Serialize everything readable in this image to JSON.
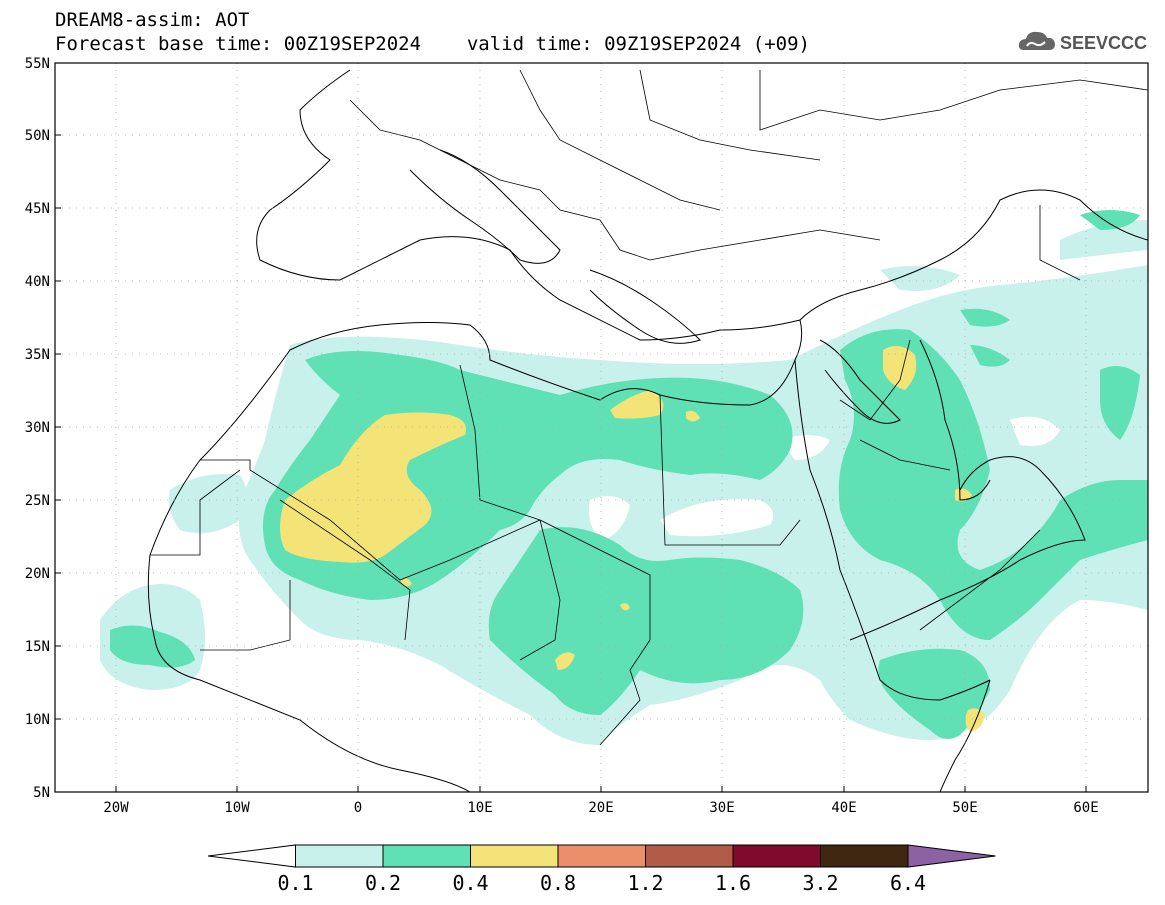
{
  "header": {
    "line1": "DREAM8-assim: AOT",
    "line2_base": "Forecast base time: 00Z19SEP2024",
    "line2_valid": "valid time: 09Z19SEP2024 (+09)",
    "logo_text": "SEEVCCC"
  },
  "axes": {
    "lat_labels": [
      "55N",
      "50N",
      "45N",
      "40N",
      "35N",
      "30N",
      "25N",
      "20N",
      "15N",
      "10N",
      "5N"
    ],
    "lon_labels": [
      "20W",
      "10W",
      "0",
      "10E",
      "20E",
      "30E",
      "40E",
      "50E",
      "60E"
    ]
  },
  "colorbar": {
    "colors": [
      "#ffffff",
      "#c7f1ea",
      "#5fe0b5",
      "#f4e478",
      "#eb8f6a",
      "#b05a47",
      "#7f0a2c",
      "#3f2712",
      "#8c62a5"
    ],
    "labels": [
      "0.1",
      "0.2",
      "0.4",
      "0.8",
      "1.2",
      "1.6",
      "3.2",
      "6.4"
    ]
  },
  "legend_levels": [
    {
      "range": "< 0.1",
      "color": "#ffffff"
    },
    {
      "range": "0.1-0.2",
      "color": "#c7f1ea"
    },
    {
      "range": "0.2-0.4",
      "color": "#5fe0b5"
    },
    {
      "range": "0.4-0.8",
      "color": "#f4e478"
    }
  ]
}
